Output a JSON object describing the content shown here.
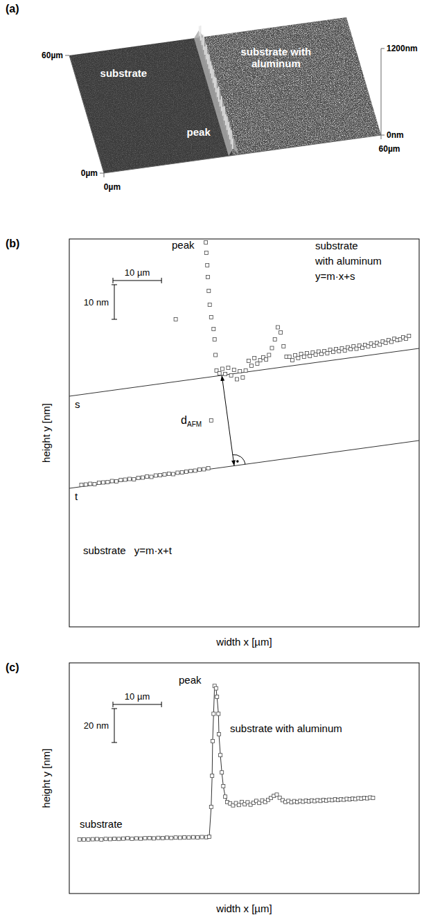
{
  "chart_data": [
    {
      "type": "surface",
      "panel": "(a)",
      "xlim": [
        0,
        60
      ],
      "ylim": [
        0,
        60
      ],
      "zlim": [
        0,
        1200
      ],
      "xticks": [
        {
          "value": 0,
          "label": "0µm"
        },
        {
          "value": 60,
          "label": "60µm"
        }
      ],
      "yticks": [
        {
          "value": 0,
          "label": "0µm"
        },
        {
          "value": 60,
          "label": "60µm"
        }
      ],
      "zticks": [
        {
          "value": 0,
          "label": "0nm"
        },
        {
          "value": 1200,
          "label": "1200nm"
        }
      ],
      "step_x": 28,
      "annotations": [
        "substrate",
        "substrate with aluminum",
        "peak"
      ]
    },
    {
      "type": "scatter",
      "panel": "(b)",
      "xlabel": "width x [µm]",
      "ylabel": "height y [nm]",
      "xlim": [
        0,
        72
      ],
      "ylim": [
        0,
        112
      ],
      "tick_labels": false,
      "marker": "square",
      "scale_bars": [
        {
          "axis": "x",
          "length": 10,
          "label": "10 µm"
        },
        {
          "axis": "y",
          "length": 10,
          "label": "10 nm"
        }
      ],
      "series": [
        {
          "x": [
            2.5,
            3.4,
            4.3,
            5.2,
            6.1,
            7.0,
            7.9,
            8.8,
            9.7,
            10.6,
            11.5,
            12.4,
            13.3,
            14.2,
            15.1,
            16.0,
            16.9,
            17.8,
            18.7,
            19.6,
            20.5,
            21.4,
            22.3,
            23.2,
            24.1,
            25.0,
            25.9,
            26.8,
            27.7,
            28.6,
            21.9,
            29.2,
            28.1,
            28.2,
            28.4,
            28.5,
            28.7,
            28.9,
            29.2,
            29.7,
            29.9,
            30.1,
            30.3,
            30.9,
            31.5,
            32.1,
            32.7,
            33.3,
            33.9,
            34.5,
            35.1,
            35.7,
            36.3,
            36.9,
            37.5,
            38.1,
            38.7,
            39.3,
            39.9,
            40.5,
            41.1,
            41.7,
            42.3,
            42.9,
            43.5,
            44.1,
            44.7,
            45.3,
            45.9,
            46.5,
            47.1,
            47.7,
            48.3,
            48.9,
            49.5,
            50.1,
            50.7,
            51.3,
            51.9,
            52.5,
            53.1,
            53.7,
            54.3,
            54.9,
            55.5,
            56.1,
            56.7,
            57.3,
            57.9,
            58.5,
            59.1,
            59.7,
            60.3,
            60.9,
            61.5,
            62.1,
            62.7,
            63.3,
            63.9,
            64.5,
            65.1,
            65.7,
            66.3,
            66.9,
            67.5,
            68.1,
            68.7,
            69.3,
            69.9
          ],
          "values": [
            41.0,
            41.1,
            41.3,
            41.2,
            41.6,
            41.7,
            41.8,
            42.1,
            42.0,
            42.4,
            42.5,
            42.7,
            42.6,
            43.0,
            43.1,
            43.4,
            43.3,
            43.7,
            43.8,
            44.0,
            44.2,
            44.1,
            44.5,
            44.6,
            44.8,
            45.0,
            45.1,
            45.4,
            45.5,
            45.8,
            88.8,
            59.6,
            111,
            108,
            104.4,
            101,
            97,
            93,
            89.4,
            86,
            83,
            78.5,
            74.0,
            73.2,
            74.5,
            73.0,
            74.8,
            72.6,
            74.2,
            71.5,
            73.8,
            72.0,
            74.0,
            76.8,
            75.4,
            77.6,
            76.0,
            77.0,
            77.8,
            77.2,
            78.5,
            80.5,
            83.0,
            86.5,
            85.0,
            81.0,
            78.0,
            78.0,
            77.0,
            78.4,
            77.6,
            78.8,
            78.0,
            79.0,
            78.2,
            79.2,
            78.6,
            79.5,
            78.8,
            79.6,
            79.0,
            80.0,
            79.4,
            80.2,
            79.6,
            80.4,
            79.8,
            80.7,
            80.2,
            81.0,
            80.3,
            81.2,
            80.6,
            81.4,
            81.0,
            81.8,
            81.2,
            82.0,
            81.5,
            82.4,
            82.0,
            82.8,
            82.3,
            83.2,
            82.8,
            83.0,
            83.6,
            83.2,
            84.0
          ]
        }
      ],
      "fit_lines": [
        {
          "name": "substrate with aluminum",
          "label": "y=m·x+s",
          "intercept_label": "s",
          "slope": 0.1917,
          "intercept": 66.6
        },
        {
          "name": "substrate",
          "label": "y=m·x+t",
          "intercept_label": "t",
          "slope": 0.1917,
          "intercept": 40
        }
      ],
      "distance_label": {
        "text": "d",
        "subscript": "AFM"
      },
      "annotations": [
        "peak"
      ]
    },
    {
      "type": "line",
      "panel": "(c)",
      "xlabel": "width x [µm]",
      "ylabel": "height y [nm]",
      "xlim": [
        0,
        72
      ],
      "ylim": [
        0,
        136
      ],
      "tick_labels": false,
      "marker": "square",
      "scale_bars": [
        {
          "axis": "x",
          "length": 10,
          "label": "10 µm"
        },
        {
          "axis": "y",
          "length": 20,
          "label": "20 nm"
        }
      ],
      "series": [
        {
          "x": [
            2.1,
            3.0,
            3.9,
            4.8,
            5.7,
            6.6,
            7.5,
            8.4,
            9.3,
            10.2,
            11.1,
            12.0,
            12.9,
            13.8,
            14.7,
            15.6,
            16.5,
            17.4,
            18.3,
            19.2,
            20.1,
            21.0,
            21.9,
            22.8,
            23.7,
            24.6,
            25.5,
            26.4,
            27.3,
            28.2,
            28.8,
            29.2,
            29.4,
            29.5,
            29.7,
            29.9,
            30.2,
            30.4,
            30.7,
            30.8,
            31.1,
            31.4,
            31.7,
            32.1,
            32.5,
            33.1,
            33.7,
            34.3,
            34.9,
            35.5,
            36.1,
            36.7,
            37.3,
            37.9,
            38.5,
            39.1,
            39.7,
            40.3,
            40.9,
            41.5,
            42.1,
            42.7,
            43.3,
            43.9,
            44.5,
            45.1,
            45.7,
            46.3,
            46.9,
            47.5,
            48.1,
            48.7,
            49.3,
            49.9,
            50.5,
            51.1,
            51.7,
            52.3,
            52.9,
            53.5,
            54.1,
            54.7,
            55.3,
            55.9,
            56.5,
            57.1,
            57.7,
            58.3,
            58.9,
            59.5,
            60.1,
            60.7,
            61.3,
            61.9,
            62.5
          ],
          "values": [
            31.8,
            31.9,
            31.8,
            32.0,
            32.1,
            31.9,
            32.2,
            32.1,
            32.3,
            32.2,
            32.4,
            32.6,
            32.3,
            32.5,
            32.4,
            32.6,
            32.7,
            32.5,
            32.8,
            32.7,
            32.9,
            32.8,
            33.0,
            32.9,
            33.1,
            33.0,
            33.2,
            33.1,
            33.3,
            33.2,
            33.5,
            51.0,
            69.4,
            89.8,
            106.0,
            122.4,
            121.0,
            116.0,
            106.0,
            93.9,
            81.6,
            71.4,
            63.3,
            57.1,
            53.9,
            53.1,
            52.0,
            53.3,
            52.2,
            54.0,
            52.6,
            53.8,
            52.4,
            53.5,
            54.6,
            53.4,
            54.9,
            54.0,
            55.2,
            56.4,
            57.6,
            58.3,
            56.5,
            55.0,
            54.0,
            54.6,
            53.8,
            54.5,
            53.9,
            54.6,
            54.1,
            54.8,
            54.3,
            54.9,
            54.5,
            55.0,
            54.6,
            55.2,
            54.8,
            55.3,
            55.0,
            55.5,
            55.1,
            55.6,
            55.3,
            55.8,
            55.5,
            56.0,
            55.7,
            56.2,
            55.9,
            56.4,
            56.1,
            56.6,
            56.4
          ]
        }
      ],
      "annotations": [
        "peak",
        "substrate",
        "substrate with aluminum"
      ]
    }
  ]
}
